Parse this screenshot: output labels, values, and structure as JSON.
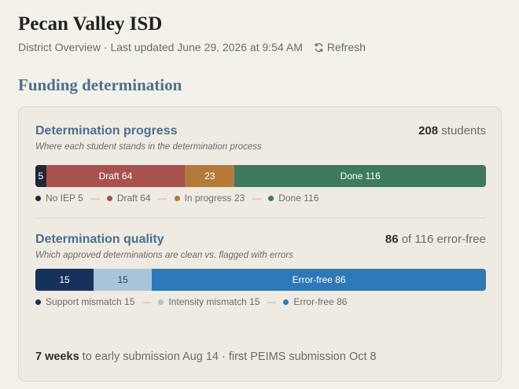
{
  "header": {
    "title": "Pecan Valley ISD",
    "subtitle": "District Overview · Last updated June 29, 2026 at 9:54 AM",
    "refresh_label": "Refresh"
  },
  "section_title": "Funding determination",
  "progress": {
    "title": "Determination progress",
    "count_number": "208",
    "count_label": "students",
    "description": "Where each student stands in the determination process",
    "segments": [
      {
        "label": "5",
        "value": 5,
        "color": "#1e2838"
      },
      {
        "label": "Draft 64",
        "value": 64,
        "color": "#a8524e"
      },
      {
        "label": "23",
        "value": 23,
        "color": "#b37a3a"
      },
      {
        "label": "Done 116",
        "value": 116,
        "color": "#3f7a5c"
      }
    ],
    "legend": [
      {
        "label": "No IEP 5",
        "color": "#1e2838"
      },
      {
        "label": "Draft 64",
        "color": "#a8524e"
      },
      {
        "label": "In progress 23",
        "color": "#b37a3a"
      },
      {
        "label": "Done 116",
        "color": "#3f7a5c"
      }
    ]
  },
  "quality": {
    "title": "Determination quality",
    "count_number": "86",
    "count_label": "of 116 error-free",
    "description": "Which approved determinations are clean vs. flagged with errors",
    "segments": [
      {
        "label": "15",
        "value": 15,
        "color": "#16325c"
      },
      {
        "label": "15",
        "value": 15,
        "color": "#a9c3d8",
        "text_color": "#2e3e55"
      },
      {
        "label": "Error-free 86",
        "value": 86,
        "color": "#2f78b7"
      }
    ],
    "legend": [
      {
        "label": "Support mismatch 15",
        "color": "#16325c"
      },
      {
        "label": "Intensity mismatch 15",
        "color": "#a9c3d8"
      },
      {
        "label": "Error-free 86",
        "color": "#2f78b7"
      }
    ]
  },
  "footer": {
    "weeks": "7 weeks",
    "rest": "to early submission Aug 14 · first PEIMS submission Oct 8"
  },
  "separator": "—"
}
